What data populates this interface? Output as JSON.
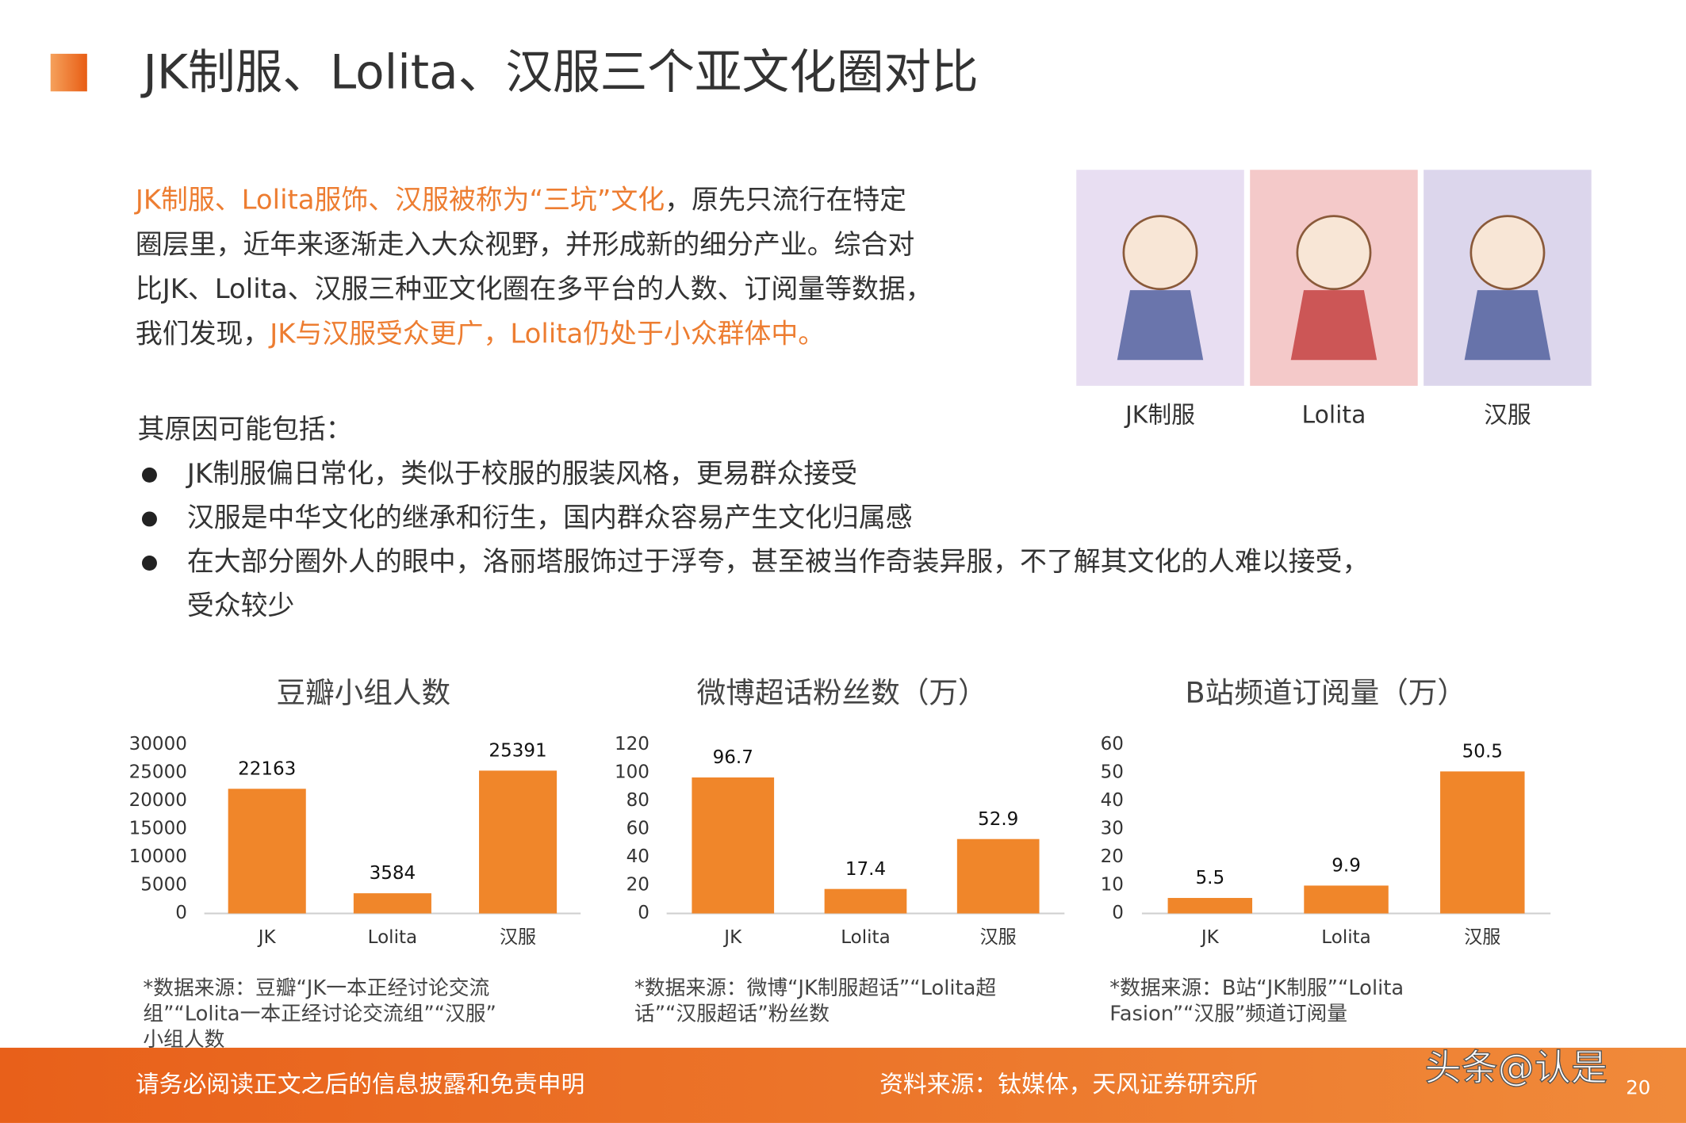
{
  "header": {
    "title": "JK制服、Lolita、汉服三个亚文化圈对比"
  },
  "intro": {
    "lines": [
      [
        {
          "text": "JK制服、Lolita服饰、汉服被称为“三坑”文化",
          "highlight": true
        },
        {
          "text": "，原先只流行在特定",
          "highlight": false
        }
      ],
      [
        {
          "text": "圈层里，近年来逐渐走入大众视野，并形成新的细分产业。综合对",
          "highlight": false
        }
      ],
      [
        {
          "text": "比JK、Lolita、汉服三种亚文化圈在多平台的人数、订阅量等数据，",
          "highlight": false
        }
      ],
      [
        {
          "text": "我们发现，",
          "highlight": false
        },
        {
          "text": "JK与汉服受众更广，Lolita仍处于小众群体中。",
          "highlight": true
        }
      ]
    ],
    "highlight_color": "#ed7d31"
  },
  "images": [
    {
      "label": "JK制服",
      "color": "#e8def2"
    },
    {
      "label": "Lolita",
      "color": "#f4c9c9"
    },
    {
      "label": "汉服",
      "color": "#dcd6ec"
    }
  ],
  "reasons": {
    "title": "其原因可能包括：",
    "bullets": [
      [
        "JK制服偏日常化，类似于校服的服装风格，更易群众接受"
      ],
      [
        "汉服是中华文化的继承和衍生，国内群众容易产生文化归属感"
      ],
      [
        "在大部分圈外人的眼中，洛丽塔服饰过于浮夸，甚至被当作奇装异服，不了解其文化的人难以接受，",
        "受众较少"
      ]
    ]
  },
  "chart_data": [
    {
      "type": "bar",
      "title": "豆瓣小组人数",
      "categories": [
        "JK",
        "Lolita",
        "汉服"
      ],
      "values": [
        22163,
        3584,
        25391
      ],
      "color": "#f0862a",
      "ylim": [
        0,
        30000
      ],
      "yticks": [
        0,
        5000,
        10000,
        15000,
        20000,
        25000,
        30000
      ],
      "grid": false,
      "note": [
        "*数据来源：豆瓣“JK一本正经讨论交流",
        "组”“Lolita一本正经讨论交流组”“汉服”",
        "小组人数"
      ]
    },
    {
      "type": "bar",
      "title": "微博超话粉丝数（万）",
      "categories": [
        "JK",
        "Lolita",
        "汉服"
      ],
      "values": [
        96.7,
        17.4,
        52.9
      ],
      "color": "#f0862a",
      "ylim": [
        0,
        120
      ],
      "yticks": [
        0,
        20,
        40,
        60,
        80,
        100,
        120
      ],
      "grid": false,
      "note": [
        "*数据来源：微博“JK制服超话”“Lolita超",
        "话”“汉服超话”粉丝数"
      ]
    },
    {
      "type": "bar",
      "title": "B站频道订阅量（万）",
      "categories": [
        "JK",
        "Lolita",
        "汉服"
      ],
      "values": [
        5.5,
        9.9,
        50.5
      ],
      "color": "#f0862a",
      "ylim": [
        0,
        60
      ],
      "yticks": [
        0,
        10,
        20,
        30,
        40,
        50,
        60
      ],
      "grid": false,
      "note": [
        "*数据来源：B站“JK制服”“Lolita",
        "Fasion”“汉服”频道订阅量"
      ]
    }
  ],
  "footer": {
    "disclaimer": "请务必阅读正文之后的信息披露和免责申明",
    "source": "资料来源：钛媒体，天风证券研究所",
    "watermark": "头条@认是",
    "page": "20"
  }
}
